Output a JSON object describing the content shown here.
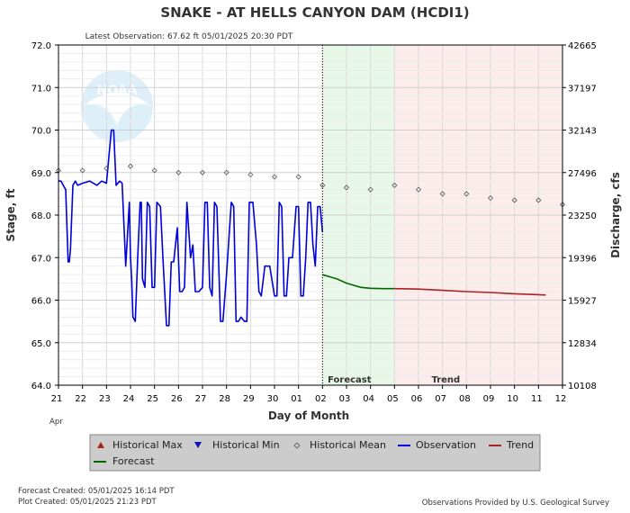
{
  "chart_data": {
    "type": "line",
    "title": "SNAKE - AT HELLS CANYON DAM  (HCDI1)",
    "latest_observation": "Latest Observation: 67.62 ft 05/01/2025 20:30 PDT",
    "xlabel": "Day of Month",
    "ylabel_left": "Stage, ft",
    "ylabel_right": "Discharge, cfs",
    "month_label": "Apr",
    "x_ticks": [
      "21",
      "22",
      "23",
      "24",
      "25",
      "26",
      "27",
      "28",
      "29",
      "30",
      "01",
      "02",
      "03",
      "04",
      "05",
      "06",
      "07",
      "08",
      "09",
      "10",
      "11",
      "12"
    ],
    "y_left_ticks": [
      "72.0",
      "71.0",
      "70.0",
      "69.0",
      "68.0",
      "67.0",
      "66.0",
      "65.0",
      "64.0"
    ],
    "y_right_ticks": [
      "42665",
      "37197",
      "32143",
      "27496",
      "23250",
      "19396",
      "15927",
      "12834",
      "10108"
    ],
    "ylim_left": [
      64,
      72
    ],
    "grid": true,
    "regions": {
      "forecast_label": "Forecast",
      "trend_label": "Trend",
      "forecast_start_day": 11,
      "forecast_end_day": 14
    },
    "series": [
      {
        "name": "Observation",
        "color": "#0000dd",
        "x": [
          0,
          0.1,
          0.3,
          0.4,
          0.45,
          0.5,
          0.6,
          0.7,
          0.8,
          1.0,
          1.3,
          1.6,
          1.8,
          2.0,
          2.2,
          2.3,
          2.4,
          2.55,
          2.65,
          2.8,
          2.95,
          3.0,
          3.05,
          3.1,
          3.2,
          3.3,
          3.4,
          3.45,
          3.5,
          3.6,
          3.7,
          3.8,
          3.9,
          4.0,
          4.1,
          4.25,
          4.35,
          4.5,
          4.6,
          4.7,
          4.8,
          4.95,
          5.05,
          5.15,
          5.25,
          5.35,
          5.5,
          5.6,
          5.7,
          5.85,
          6.0,
          6.1,
          6.2,
          6.3,
          6.4,
          6.5,
          6.6,
          6.75,
          6.85,
          7.0,
          7.2,
          7.3,
          7.4,
          7.5,
          7.6,
          7.75,
          7.85,
          7.95,
          8.1,
          8.25,
          8.35,
          8.45,
          8.6,
          8.8,
          9.0,
          9.1,
          9.2,
          9.3,
          9.4,
          9.5,
          9.6,
          9.75,
          9.9,
          10.0,
          10.1,
          10.2,
          10.3,
          10.4,
          10.5,
          10.6,
          10.7,
          10.8,
          10.9,
          11.0
        ],
        "values": [
          68.8,
          68.8,
          68.6,
          66.9,
          66.9,
          67.2,
          68.7,
          68.8,
          68.7,
          68.75,
          68.8,
          68.7,
          68.8,
          68.75,
          70.0,
          70.0,
          68.7,
          68.8,
          68.75,
          66.8,
          68.3,
          67.0,
          66.5,
          65.6,
          65.5,
          67.0,
          68.3,
          68.3,
          66.5,
          66.3,
          68.3,
          68.2,
          66.3,
          66.3,
          68.3,
          68.2,
          67.0,
          65.4,
          65.4,
          66.9,
          66.9,
          67.7,
          66.2,
          66.2,
          66.3,
          68.3,
          67.0,
          67.3,
          66.2,
          66.2,
          66.3,
          68.3,
          68.3,
          66.3,
          66.1,
          68.3,
          68.2,
          65.5,
          65.5,
          66.6,
          68.3,
          68.2,
          65.5,
          65.5,
          65.6,
          65.5,
          65.5,
          68.3,
          68.3,
          67.3,
          66.2,
          66.1,
          66.8,
          66.8,
          66.1,
          66.1,
          68.3,
          68.2,
          66.1,
          66.1,
          67.0,
          67.0,
          68.2,
          68.2,
          66.1,
          66.1,
          67.0,
          68.3,
          68.3,
          67.3,
          66.8,
          68.2,
          68.2,
          67.6
        ]
      },
      {
        "name": "Forecast",
        "color": "#006600",
        "x": [
          11.0,
          11.3,
          11.6,
          12.0,
          12.3,
          12.6,
          13.0,
          13.5,
          14.0
        ],
        "values": [
          66.6,
          66.55,
          66.5,
          66.4,
          66.35,
          66.3,
          66.28,
          66.27,
          66.27
        ]
      },
      {
        "name": "Trend",
        "color": "#aa2222",
        "x": [
          14.0,
          15.0,
          16.0,
          17.0,
          18.0,
          19.0,
          20.0,
          20.3
        ],
        "values": [
          66.27,
          66.26,
          66.23,
          66.2,
          66.18,
          66.15,
          66.13,
          66.12
        ]
      },
      {
        "name": "Historical Mean",
        "color": "#555555",
        "x": [
          0,
          1,
          2,
          3,
          4,
          5,
          6,
          7,
          8,
          9,
          10,
          11,
          12,
          13,
          14,
          15,
          16,
          17,
          18,
          19,
          20,
          21
        ],
        "values": [
          69.05,
          69.05,
          69.1,
          69.15,
          69.05,
          69.0,
          69.0,
          69.0,
          68.95,
          68.9,
          68.9,
          68.7,
          68.65,
          68.6,
          68.7,
          68.6,
          68.5,
          68.5,
          68.4,
          68.35,
          68.35,
          68.25
        ]
      }
    ],
    "legend": [
      "Historical Max",
      "Historical Min",
      "Historical Mean",
      "Observation",
      "Trend",
      "Forecast"
    ],
    "colors": {
      "max_marker": "#aa2222",
      "min_marker": "#1111bb",
      "mean_marker": "#555555",
      "forecast_bg": "#e8f8e8",
      "trend_bg": "#fcecec"
    }
  },
  "footer": {
    "forecast_created": "Forecast Created: 05/01/2025 16:14 PDT",
    "plot_created": "Plot Created: 05/01/2025 21:23 PDT",
    "credit": "Observations Provided by U.S. Geological Survey"
  },
  "logo": {
    "text": "NOAA"
  }
}
